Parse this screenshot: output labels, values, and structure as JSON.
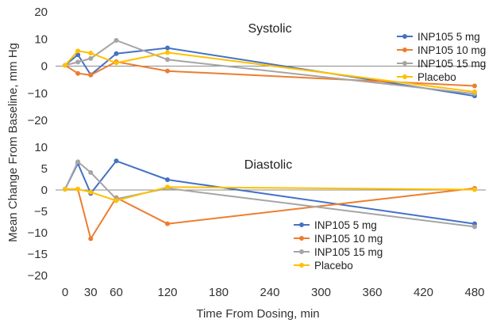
{
  "chart_data": {
    "type": "line",
    "ylabel": "Mean Change From Baseline, mm Hg",
    "xlabel": "Time From Dosing, min",
    "x_ticks": [
      0,
      30,
      60,
      120,
      180,
      240,
      300,
      360,
      420,
      480
    ],
    "colors": {
      "INP105 5 mg": "#4472c4",
      "INP105 10 mg": "#ed7d31",
      "INP105 15 mg": "#a5a5a5",
      "Placebo": "#ffc000"
    },
    "panels": [
      {
        "title": "Systolic",
        "ylim": [
          -20,
          20
        ],
        "y_ticks": [
          20,
          10,
          0,
          -10,
          -20
        ],
        "legend_position": "top-right",
        "series": [
          {
            "name": "INP105 5 mg",
            "x": [
              0,
              15,
              30,
              60,
              120,
              480
            ],
            "y": [
              0.3,
              4.2,
              -3.2,
              4.6,
              6.7,
              -11
            ]
          },
          {
            "name": "INP105 10 mg",
            "x": [
              0,
              15,
              30,
              60,
              120,
              480
            ],
            "y": [
              0.3,
              -2.7,
              -3.3,
              1.6,
              -1.8,
              -7.3
            ]
          },
          {
            "name": "INP105 15 mg",
            "x": [
              0,
              15,
              30,
              60,
              120,
              480
            ],
            "y": [
              0.3,
              1.5,
              2.8,
              9.5,
              2.4,
              -10.2
            ]
          },
          {
            "name": "Placebo",
            "x": [
              0,
              15,
              30,
              60,
              120,
              480
            ],
            "y": [
              0.3,
              5.6,
              4.8,
              1.2,
              5.0,
              -9.5
            ]
          }
        ]
      },
      {
        "title": "Diastolic",
        "ylim": [
          -20,
          10
        ],
        "y_ticks": [
          10,
          5,
          0,
          -5,
          -10,
          -15,
          -20
        ],
        "legend_position": "bottom-center",
        "series": [
          {
            "name": "INP105 5 mg",
            "x": [
              0,
              15,
              30,
              60,
              120,
              480
            ],
            "y": [
              0.2,
              6.2,
              -0.8,
              6.8,
              2.4,
              -7.9
            ]
          },
          {
            "name": "INP105 10 mg",
            "x": [
              0,
              15,
              30,
              60,
              120,
              480
            ],
            "y": [
              0.2,
              0.2,
              -11.4,
              -1.8,
              -7.9,
              0.4
            ]
          },
          {
            "name": "INP105 15 mg",
            "x": [
              0,
              15,
              30,
              60,
              120,
              480
            ],
            "y": [
              0.2,
              6.6,
              4.1,
              -2.1,
              0.4,
              -8.6
            ]
          },
          {
            "name": "Placebo",
            "x": [
              0,
              15,
              30,
              60,
              120,
              480
            ],
            "y": [
              0.2,
              0.2,
              -0.5,
              -2.5,
              0.7,
              0.1
            ]
          }
        ]
      }
    ]
  }
}
